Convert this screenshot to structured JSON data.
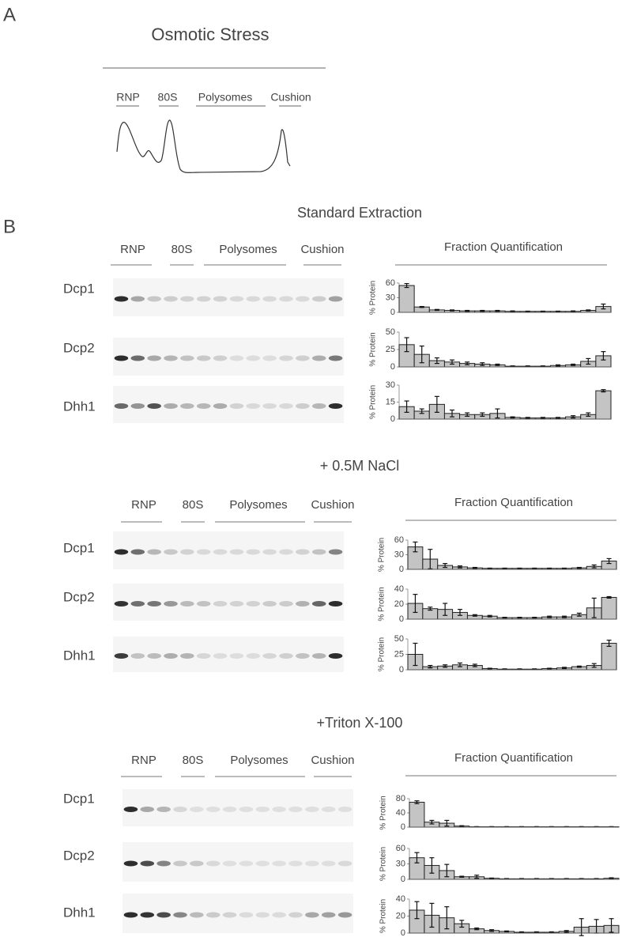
{
  "panel_a": {
    "label": "A",
    "title": "Osmotic Stress",
    "regions": [
      "RNP",
      "80S",
      "Polysomes",
      "Cushion"
    ]
  },
  "panel_b_label": "B",
  "sections": [
    {
      "title": "Standard Extraction",
      "regions": [
        "RNP",
        "80S",
        "Polysomes",
        "Cushion"
      ],
      "quant_title": "Fraction Quantification",
      "proteins": [
        {
          "name": "Dcp1",
          "chart": {
            "type": "bar",
            "ylabel": "% Protein",
            "color": "#c4c4c4",
            "ylim": [
              0,
              60
            ],
            "yticks": [
              0,
              30,
              60
            ],
            "values": [
              55,
              11,
              5,
              4,
              3,
              3,
              3,
              2,
              2,
              2,
              2,
              2,
              4,
              12
            ],
            "errors": [
              4,
              1,
              1,
              1,
              1,
              1,
              1,
              1,
              0.5,
              0.5,
              0.5,
              1,
              1,
              5
            ]
          }
        },
        {
          "name": "Dcp2",
          "chart": {
            "type": "bar",
            "ylabel": "% Protein",
            "color": "#c4c4c4",
            "ylim": [
              0,
              50
            ],
            "yticks": [
              0,
              25,
              50
            ],
            "values": [
              32,
              18,
              9,
              7,
              5,
              4,
              3,
              1,
              1,
              1,
              2,
              3,
              8,
              16
            ],
            "errors": [
              10,
              12,
              4,
              3,
              2,
              2,
              1,
              0.5,
              0.5,
              0.5,
              1,
              1,
              4,
              6
            ]
          }
        },
        {
          "name": "Dhh1",
          "chart": {
            "type": "bar",
            "ylabel": "% Protein",
            "color": "#c4c4c4",
            "ylim": [
              0,
              30
            ],
            "yticks": [
              0,
              15,
              30
            ],
            "values": [
              11,
              7,
              13,
              5,
              4,
              4,
              5,
              1.5,
              1,
              1,
              1,
              2,
              4,
              25
            ],
            "errors": [
              5,
              2,
              7,
              3,
              1.5,
              1.5,
              4,
              0.5,
              0.5,
              0.5,
              0.5,
              1,
              1.5,
              1
            ]
          }
        }
      ]
    },
    {
      "title": "+ 0.5M NaCl",
      "regions": [
        "RNP",
        "80S",
        "Polysomes",
        "Cushion"
      ],
      "quant_title": "Fraction Quantification",
      "proteins": [
        {
          "name": "Dcp1",
          "chart": {
            "type": "bar",
            "ylabel": "% Protein",
            "color": "#c4c4c4",
            "ylim": [
              0,
              60
            ],
            "yticks": [
              0,
              30,
              60
            ],
            "values": [
              46,
              21,
              8,
              5,
              3,
              2,
              2,
              2,
              2,
              2,
              2,
              3,
              6,
              17
            ],
            "errors": [
              10,
              20,
              4,
              2,
              1,
              0.5,
              0.5,
              0.5,
              0.5,
              0.5,
              0.5,
              1,
              3,
              5
            ]
          }
        },
        {
          "name": "Dcp2",
          "chart": {
            "type": "bar",
            "ylabel": "% Protein",
            "color": "#c4c4c4",
            "ylim": [
              0,
              40
            ],
            "yticks": [
              0,
              20,
              40
            ],
            "values": [
              21,
              14,
              13,
              9,
              5,
              4,
              2,
              2,
              2,
              3,
              3,
              6,
              15,
              29
            ],
            "errors": [
              12,
              2,
              8,
              4,
              1,
              1,
              0.5,
              0.5,
              0.5,
              1,
              1,
              2,
              13,
              1
            ]
          }
        },
        {
          "name": "Dhh1",
          "chart": {
            "type": "bar",
            "ylabel": "% Protein",
            "color": "#c4c4c4",
            "ylim": [
              0,
              50
            ],
            "yticks": [
              0,
              25,
              50
            ],
            "values": [
              25,
              5,
              6,
              8,
              7,
              2,
              1,
              1,
              1,
              2,
              3,
              5,
              7,
              43
            ],
            "errors": [
              18,
              2,
              2,
              3,
              2,
              0.5,
              0.5,
              0.5,
              0.5,
              0.5,
              1,
              1,
              3,
              5
            ]
          }
        }
      ]
    },
    {
      "title": "+Triton X-100",
      "regions": [
        "RNP",
        "80S",
        "Polysomes",
        "Cushion"
      ],
      "quant_title": "Fraction Quantification",
      "proteins": [
        {
          "name": "Dcp1",
          "chart": {
            "type": "bar",
            "ylabel": "% Protein",
            "color": "#c4c4c4",
            "ylim": [
              0,
              80
            ],
            "yticks": [
              0,
              40,
              80
            ],
            "values": [
              70,
              14,
              11,
              3,
              1,
              1,
              1,
              1,
              1,
              1,
              1,
              1,
              1,
              1
            ],
            "errors": [
              4,
              5,
              8,
              1,
              0.5,
              0.5,
              0.5,
              0.5,
              0.5,
              0.5,
              0.5,
              0.5,
              0.5,
              0.5
            ]
          }
        },
        {
          "name": "Dcp2",
          "chart": {
            "type": "bar",
            "ylabel": "% Protein",
            "color": "#c4c4c4",
            "ylim": [
              0,
              60
            ],
            "yticks": [
              0,
              30,
              60
            ],
            "values": [
              42,
              27,
              17,
              5,
              5,
              2,
              1,
              1,
              1,
              1,
              1,
              1,
              1,
              2
            ],
            "errors": [
              10,
              15,
              12,
              1,
              3,
              0.5,
              0.5,
              0.5,
              0.5,
              0.5,
              0.5,
              0.5,
              0.5,
              1
            ]
          }
        },
        {
          "name": "Dhh1",
          "chart": {
            "type": "bar",
            "ylabel": "% Protein",
            "color": "#c4c4c4",
            "ylim": [
              0,
              40
            ],
            "yticks": [
              0,
              20,
              40
            ],
            "values": [
              27,
              21,
              18,
              11,
              5,
              3,
              2,
              1,
              1,
              1,
              2,
              7,
              8,
              9
            ],
            "errors": [
              10,
              14,
              13,
              4,
              1,
              1,
              0.5,
              0.5,
              0.5,
              0.5,
              1,
              10,
              8,
              8
            ]
          }
        }
      ]
    }
  ]
}
